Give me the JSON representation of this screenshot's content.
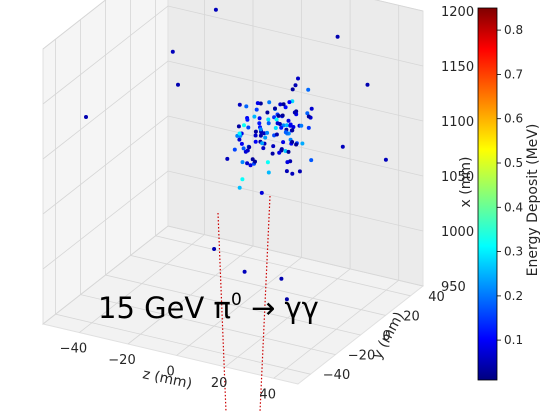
{
  "chart_data": {
    "type": "scatter",
    "projection": "3d",
    "title": "15 GeV π⁰ → γγ",
    "title_parts": {
      "pre": "15 GeV π",
      "sup": "0",
      "post": " → γγ"
    },
    "axes": {
      "z": {
        "label": "z (mm)",
        "range": [
          -55,
          50
        ],
        "ticks": [
          -40,
          -20,
          0,
          20,
          40
        ]
      },
      "y": {
        "label": "y (mm)",
        "range": [
          -50,
          50
        ],
        "ticks": [
          -40,
          -20,
          0,
          20,
          40
        ]
      },
      "x": {
        "label": "x (mm)",
        "range": [
          950,
          1200
        ],
        "ticks": [
          950,
          1000,
          1050,
          1100,
          1150,
          1200
        ]
      }
    },
    "colorbar": {
      "label": "Energy Deposit (MeV)",
      "range": [
        0.01,
        0.85
      ],
      "ticks": [
        0.1,
        0.2,
        0.3,
        0.4,
        0.5,
        0.6,
        0.7,
        0.8
      ],
      "colormap": "jet"
    },
    "grid": true,
    "tracks": [
      {
        "name": "photon track 1",
        "color": "#cc0000",
        "style": "dotted"
      },
      {
        "name": "photon track 2",
        "color": "#cc0000",
        "style": "dotted"
      }
    ],
    "clusters": [
      {
        "center": {
          "z": 5,
          "y": 5,
          "x": 1100
        },
        "spread": {
          "z": 8,
          "y": 10,
          "x": 35
        },
        "count": 60,
        "energy_range": [
          0.03,
          0.35
        ]
      },
      {
        "center": {
          "z": 15,
          "y": 12,
          "x": 1110
        },
        "spread": {
          "z": 7,
          "y": 9,
          "x": 35
        },
        "count": 60,
        "energy_range": [
          0.03,
          0.35
        ]
      }
    ],
    "scattered_points": [
      {
        "z": -52,
        "y": 45,
        "x": 1180,
        "e": 0.35
      },
      {
        "z": -45,
        "y": -35,
        "x": 1130,
        "e": 0.05
      },
      {
        "z": -30,
        "y": 40,
        "x": 1200,
        "e": 0.04
      },
      {
        "z": -25,
        "y": 30,
        "x": 1180,
        "e": 0.06
      },
      {
        "z": -20,
        "y": -10,
        "x": 1150,
        "e": 0.05
      },
      {
        "z": -35,
        "y": 15,
        "x": 1150,
        "e": 0.06
      },
      {
        "z": 10,
        "y": 45,
        "x": 1200,
        "e": 0.05
      },
      {
        "z": 0,
        "y": -20,
        "x": 1020,
        "e": 0.05
      },
      {
        "z": 10,
        "y": -15,
        "x": 1000,
        "e": 0.06
      },
      {
        "z": 20,
        "y": -5,
        "x": 990,
        "e": 0.05
      },
      {
        "z": 35,
        "y": 15,
        "x": 1100,
        "e": 0.06
      },
      {
        "z": 30,
        "y": -20,
        "x": 990,
        "e": 0.04
      },
      {
        "z": 40,
        "y": 25,
        "x": 1150,
        "e": 0.05
      },
      {
        "z": 45,
        "y": 30,
        "x": 1080,
        "e": 0.06
      },
      {
        "z": 20,
        "y": 40,
        "x": 1170,
        "e": 0.05
      },
      {
        "z": -10,
        "y": 10,
        "x": 1070,
        "e": 0.06
      }
    ]
  }
}
